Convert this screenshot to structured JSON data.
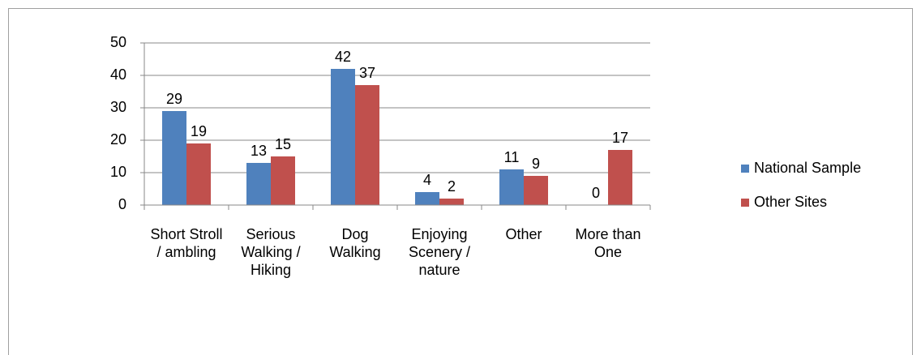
{
  "chart_data": {
    "type": "bar",
    "categories": [
      "Short Stroll / ambling",
      "Serious Walking / Hiking",
      "Dog Walking",
      "Enjoying Scenery / nature",
      "Other",
      "More than One"
    ],
    "series": [
      {
        "name": "National Sample",
        "color": "#4f81bd",
        "values": [
          29,
          13,
          42,
          4,
          11,
          0
        ]
      },
      {
        "name": "Other Sites",
        "color": "#c0504d",
        "values": [
          19,
          15,
          37,
          2,
          9,
          17
        ]
      }
    ],
    "ylim": [
      0,
      50
    ],
    "yticks": [
      0,
      10,
      20,
      30,
      40,
      50
    ],
    "grid": true,
    "legend": "right"
  }
}
